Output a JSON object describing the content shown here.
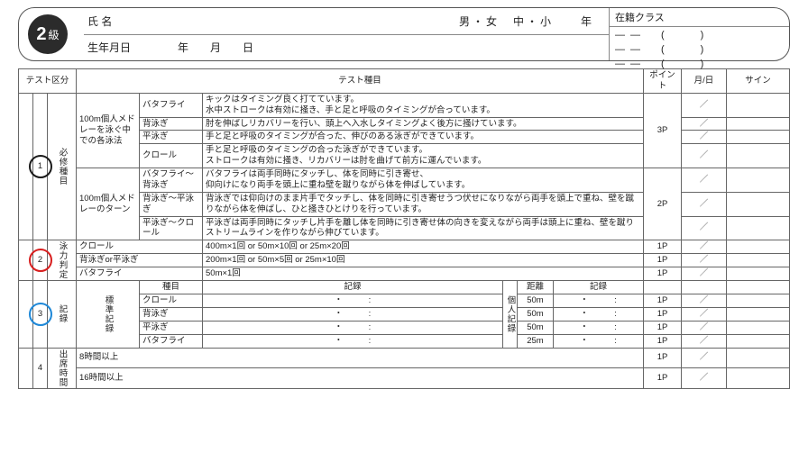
{
  "header": {
    "grade_num": "2",
    "grade_suffix": "級",
    "name_label": "氏 名",
    "gender_line": "男・女　中・小　　年",
    "birth_label": "生年月日",
    "birth_fill": "年　　月　　日",
    "class_label": "在籍クラス",
    "class_line": "――　(　　)"
  },
  "cols": {
    "test_kubun": "テスト区分",
    "test_item": "テスト種目",
    "point": "ポイント",
    "date": "月/日",
    "sign": "サイン"
  },
  "sec1": {
    "num": "1",
    "label": "必修種目",
    "group1": {
      "title": "100m個人メドレーを泳ぐ中での各泳法",
      "r1": {
        "stroke": "バタフライ",
        "desc": "キックはタイミング良く打てています。\n水中ストロークは有効に掻き、手と足と呼吸のタイミングが合っています。"
      },
      "r2": {
        "stroke": "背泳ぎ",
        "desc": "肘を伸ばしリカバリーを行い、頭上へ入水しタイミングよく後方に掻けています。"
      },
      "r3": {
        "stroke": "平泳ぎ",
        "desc": "手と足と呼吸のタイミングが合った、伸びのある泳ぎができています。"
      },
      "r4": {
        "stroke": "クロール",
        "desc": "手と足と呼吸のタイミングの合った泳ぎができています。\nストロークは有効に掻き、リカバリーは肘を曲げて前方に運んでいます。"
      },
      "points": "3P"
    },
    "group2": {
      "title": "100m個人メドレーのターン",
      "r1": {
        "stroke": "バタフライ～背泳ぎ",
        "desc": "バタフライは両手同時にタッチし、体を同時に引き寄せ、\n仰向けになり両手を頭上に重ね壁を蹴りながら体を伸ばしています。"
      },
      "r2": {
        "stroke": "背泳ぎ～平泳ぎ",
        "desc": "背泳ぎでは仰向けのまま片手でタッチし、体を同時に引き寄せうつ伏せになりながら両手を頭上で重ね、壁を蹴りながら体を伸ばし、ひと掻きひとけりを行っています。"
      },
      "r3": {
        "stroke": "平泳ぎ～クロール",
        "desc": "平泳ぎは両手同時にタッチし片手を離し体を同時に引き寄せ体の向きを変えながら両手は頭上に重ね、壁を蹴りストリームラインを作りながら伸びています。"
      },
      "points": "2P"
    }
  },
  "sec2": {
    "num": "2",
    "label": "泳力判定",
    "r1": {
      "stroke": "クロール",
      "desc": "400m×1回 or 50m×10回 or 25m×20回",
      "pt": "1P"
    },
    "r2": {
      "stroke": "背泳ぎor平泳ぎ",
      "desc": "200m×1回 or 50m×5回 or 25m×10回",
      "pt": "1P"
    },
    "r3": {
      "stroke": "バタフライ",
      "desc": "50m×1回",
      "pt": "1P"
    }
  },
  "sec3": {
    "num": "3",
    "label": "記録",
    "sub1_label": "標準記録",
    "sub2_label": "個人記録",
    "h": {
      "stroke": "種目",
      "record": "記録",
      "dist": "距離",
      "record2": "記録"
    },
    "r1": {
      "s": "クロール",
      "d": "50m",
      "pt": "1P"
    },
    "r2": {
      "s": "背泳ぎ",
      "d": "50m",
      "pt": "1P"
    },
    "r3": {
      "s": "平泳ぎ",
      "d": "50m",
      "pt": "1P"
    },
    "r4": {
      "s": "バタフライ",
      "d": "25m",
      "pt": "1P"
    },
    "dots": "・　　　:"
  },
  "sec4": {
    "num": "4",
    "label": "出席時間",
    "r1": {
      "t": "8時間以上",
      "pt": "1P"
    },
    "r2": {
      "t": "16時間以上",
      "pt": "1P"
    }
  },
  "slash": "／",
  "circles": {
    "c1": {
      "color": "#1a1a1a"
    },
    "c2": {
      "color": "#d81e1e"
    },
    "c3": {
      "color": "#1e88d8"
    }
  }
}
